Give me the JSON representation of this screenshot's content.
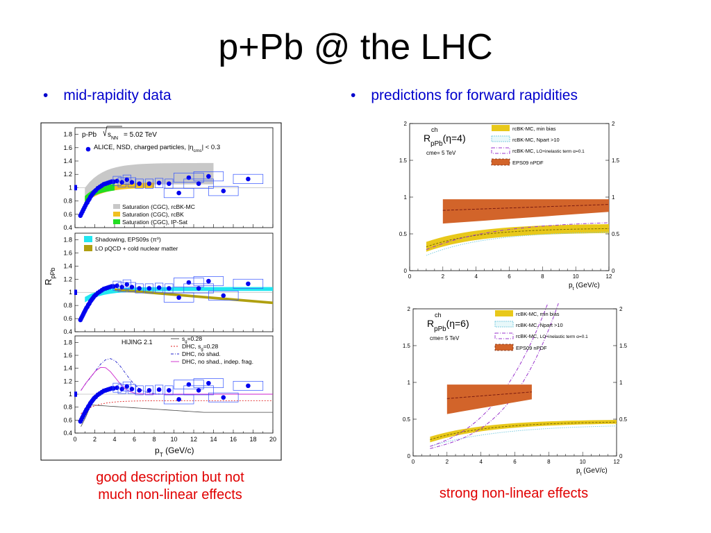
{
  "slide": {
    "title": "p+Pb @ the LHC",
    "bullet_left": "mid-rapidity data",
    "bullet_right": "predictions for forward rapidities",
    "caption_left_1": "good description but not",
    "caption_left_2": "much non-linear effects",
    "caption_right": "strong non-linear effects",
    "bullet_glyph": "•"
  },
  "colors": {
    "title": "#000000",
    "bullet": "#0000cc",
    "caption": "#e00000",
    "data": "#0000ee",
    "cgc_grey": "#c8c8c8",
    "cgc_yellow": "#f0c020",
    "ipsat_green": "#22dd22",
    "eps_cyan": "#22e6f0",
    "lo_olive": "#b0a010",
    "rcbk_band": "#e8c81a",
    "eps09_band": "#d2642a",
    "npart": "#7ecde0",
    "lo_inel": "#9933cc"
  },
  "chart_data": [
    {
      "type": "scatter",
      "label": "left-top",
      "xlim": [
        0,
        20
      ],
      "ylim": [
        0.4,
        1.9
      ],
      "xticks": [
        "0",
        "2",
        "4",
        "6",
        "8",
        "10",
        "12",
        "14",
        "16",
        "18",
        "20"
      ],
      "yticks": [
        "0.4",
        "0.6",
        "0.8",
        "1",
        "1.2",
        "1.4",
        "1.6",
        "1.8"
      ],
      "header_1": "p-Pb",
      "header_2": "= 5.02 TeV",
      "sqrt_label": "s",
      "sqrt_sub": "NN",
      "data_label_a": "ALICE, NSD, charged particles, |η",
      "data_label_sub": "cms",
      "data_label_b": "| < 0.3",
      "legend": [
        "Saturation (CGC), rcBK-MC",
        "Saturation (CGC), rcBK",
        "Saturation (CGC), IP-Sat"
      ],
      "series": [
        {
          "name": "ALICE",
          "x": [
            0.55,
            0.65,
            0.75,
            0.85,
            0.95,
            1.05,
            1.15,
            1.25,
            1.35,
            1.45,
            1.55,
            1.65,
            1.75,
            1.85,
            1.95,
            2.1,
            2.3,
            2.5,
            2.7,
            2.9,
            3.1,
            3.3,
            3.5,
            3.7,
            3.9,
            4.25,
            4.75,
            5.25,
            5.75,
            6.5,
            7.5,
            8.5,
            9.5,
            10.5,
            11.5,
            12.5,
            13.5,
            15,
            17.5
          ],
          "y": [
            0.58,
            0.61,
            0.64,
            0.67,
            0.7,
            0.73,
            0.76,
            0.78,
            0.81,
            0.83,
            0.86,
            0.88,
            0.9,
            0.92,
            0.94,
            0.96,
            0.99,
            1.01,
            1.03,
            1.05,
            1.06,
            1.07,
            1.08,
            1.09,
            1.09,
            1.1,
            1.08,
            1.12,
            1.08,
            1.06,
            1.06,
            1.07,
            1.06,
            0.92,
            1.15,
            1.06,
            1.17,
            0.95,
            1.13
          ]
        }
      ]
    },
    {
      "type": "scatter",
      "label": "left-middle",
      "xlim": [
        0,
        20
      ],
      "ylim": [
        0.4,
        1.9
      ],
      "yticks": [
        "0.4",
        "0.6",
        "0.8",
        "1",
        "1.2",
        "1.4",
        "1.6",
        "1.8"
      ],
      "ylabel": "R",
      "ylabel_sub": "pPb",
      "legend": [
        "Shadowing, EPS09s (π⁰)",
        "LO pQCD + cold nuclear matter"
      ]
    },
    {
      "type": "scatter",
      "label": "left-bottom",
      "xlim": [
        0,
        20
      ],
      "ylim": [
        0.4,
        1.9
      ],
      "yticks": [
        "0.4",
        "0.6",
        "0.8",
        "1",
        "1.2",
        "1.4",
        "1.6",
        "1.8"
      ],
      "xlabel": "p",
      "xlabel_sub": "T",
      "xlabel_rest": " (GeV/c)",
      "model_label": "HIJING 2.1",
      "legend": [
        "s",
        "DHC, s",
        "DHC, no shad.",
        "DHC, no shad., indep. frag."
      ],
      "legend_sub": [
        "g",
        "g"
      ],
      "legend_rest": [
        "=0.28",
        "=0.28"
      ]
    },
    {
      "type": "line",
      "label": "right-top",
      "title": "R",
      "title_sup": "ch",
      "title_sub": "pPb",
      "title_rest": "(η=4)",
      "energy": "cme= 5 TeV",
      "xlim": [
        0,
        12
      ],
      "ylim": [
        0,
        2
      ],
      "xticks": [
        "0",
        "2",
        "4",
        "6",
        "8",
        "10",
        "12"
      ],
      "yticks": [
        "0",
        "0.5",
        "1",
        "1.5",
        "2"
      ],
      "xlabel": "p",
      "xlabel_sub": "t",
      "xlabel_rest": " (GeV/c)",
      "legend": [
        "rcBK-MC, min bias",
        "rcBK-MC, Npart >10",
        "rcBK-MC, ",
        "EPS09 nPDF"
      ],
      "legend_small": "LO+inelastic term α=0.1"
    },
    {
      "type": "line",
      "label": "right-bottom",
      "title": "R",
      "title_sup": "ch",
      "title_sub": "pPb",
      "title_rest": "(η=6)",
      "energy": "cme= 5 TeV",
      "xlim": [
        0,
        12
      ],
      "ylim": [
        0,
        2
      ],
      "xticks": [
        "0",
        "2",
        "4",
        "6",
        "8",
        "10",
        "12"
      ],
      "yticks": [
        "0",
        "0.5",
        "1",
        "1.5",
        "2"
      ],
      "xlabel": "p",
      "xlabel_sub": "t",
      "xlabel_rest": " (GeV/c)",
      "legend": [
        "rcBK-MC, min bias",
        "rcBK-MC, Npart >10",
        "rcBK-MC, ",
        "EPS09 nPDF"
      ],
      "legend_small": "LO+inelastic term α=0.1"
    }
  ]
}
